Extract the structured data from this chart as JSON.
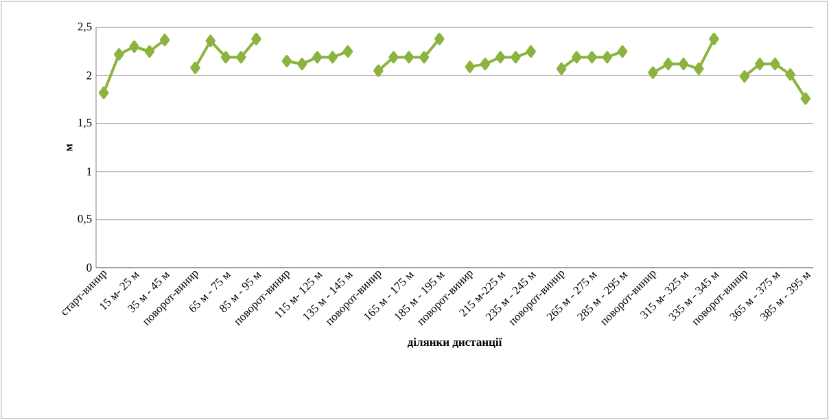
{
  "chart_data": {
    "type": "line",
    "xlabel": "ділянки дистанції",
    "ylabel": "м",
    "categories": [
      "старт-винир",
      null,
      "15 м- 25 м",
      null,
      "35 м - 45 м",
      null,
      "поворот-винир",
      null,
      "65 м - 75 м",
      null,
      "85 м - 95 м",
      null,
      "поворот-винир",
      null,
      "115 м- 125 м",
      null,
      "135 м - 145 м",
      null,
      "поворот-винир",
      null,
      "165 м - 175 м",
      null,
      "185 м - 195 м",
      null,
      "поворот-винир",
      null,
      "215 м-225 м",
      null,
      "235 м - 245 м",
      null,
      "поворот-винир",
      null,
      "265 м - 275 м",
      null,
      "285 м - 295 м",
      null,
      "поворот-винир",
      null,
      "315 м- 325 м",
      null,
      "335 м - 345 м",
      null,
      "поворот-винир",
      null,
      "365 м - 375 м",
      null,
      "385 м - 395 м"
    ],
    "series": [
      {
        "color": "#8db33f",
        "values": [
          1.82,
          2.22,
          2.3,
          2.25,
          2.37,
          null,
          2.08,
          2.36,
          2.19,
          2.19,
          2.38,
          null,
          2.15,
          2.12,
          2.19,
          2.19,
          2.25,
          null,
          2.05,
          2.19,
          2.19,
          2.19,
          2.38,
          null,
          2.09,
          2.12,
          2.19,
          2.19,
          2.25,
          null,
          2.07,
          2.19,
          2.19,
          2.19,
          2.25,
          null,
          2.03,
          2.12,
          2.12,
          2.07,
          2.38,
          null,
          1.99,
          2.12,
          2.12,
          2.01,
          1.76
        ]
      }
    ],
    "ylim": [
      0,
      2.5
    ],
    "yticks": [
      0,
      {
        "value": 0.5,
        "label": "0,5"
      },
      1,
      {
        "value": 1.5,
        "label": "1,5"
      },
      2,
      {
        "value": 2.5,
        "label": "2,5"
      }
    ],
    "grid": "y",
    "marker": "diamond",
    "line_style": "solid"
  }
}
